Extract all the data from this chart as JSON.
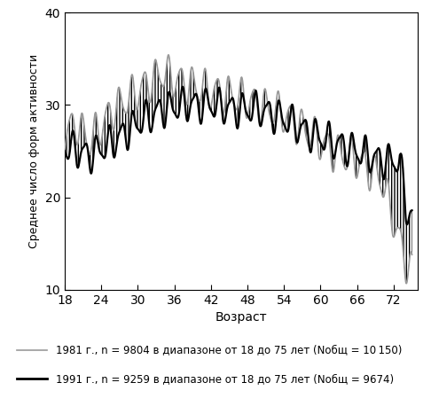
{
  "xlabel": "Возраст",
  "ylabel": "Среднее число форм активности",
  "xlim": [
    18,
    76
  ],
  "ylim": [
    10,
    40
  ],
  "xticks": [
    18,
    24,
    30,
    36,
    42,
    48,
    54,
    60,
    66,
    72
  ],
  "yticks": [
    10,
    20,
    30,
    40
  ],
  "line1_color": "#999999",
  "line2_color": "#000000",
  "figsize": [
    4.86,
    4.67
  ],
  "dpi": 100
}
